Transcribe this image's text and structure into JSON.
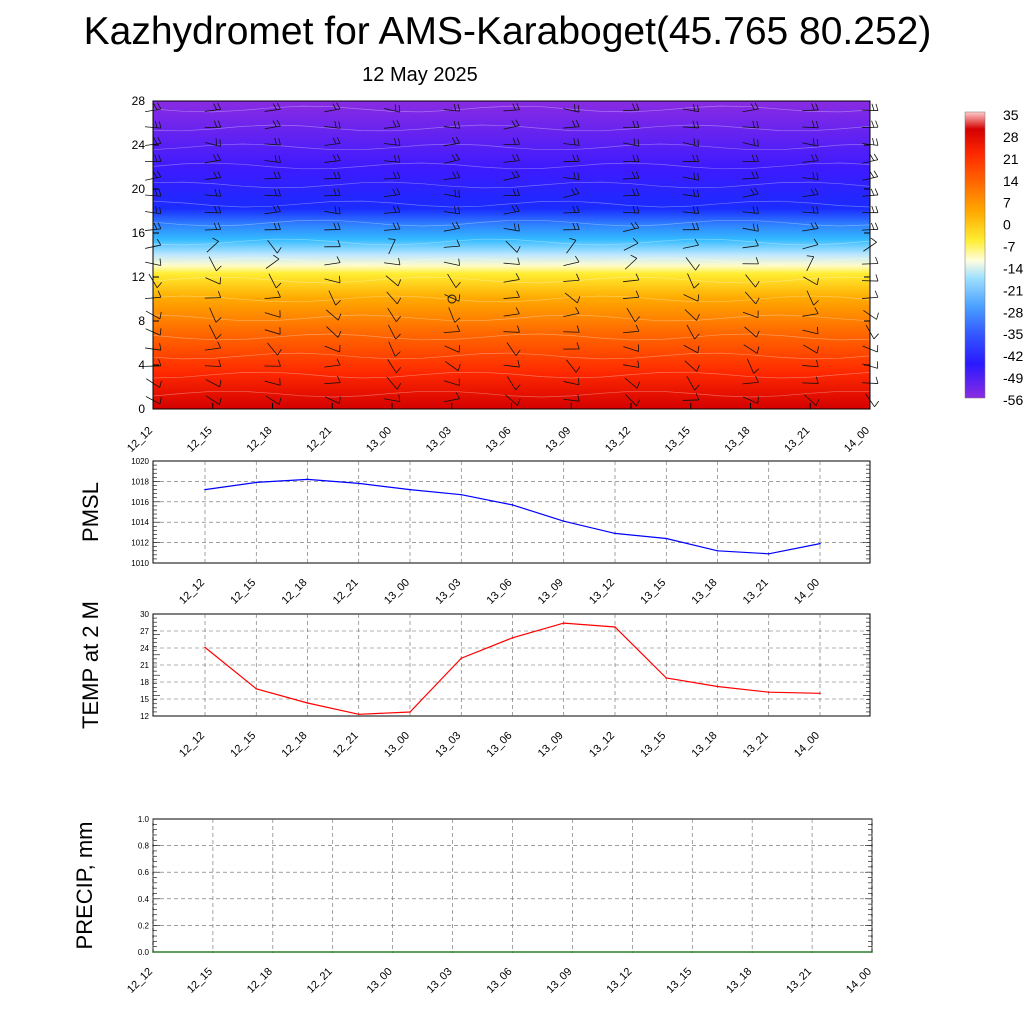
{
  "title": "Kazhydromet for AMS-Karaboget(45.765 80.252)",
  "subtitle": "12 May 2025",
  "time_labels": [
    "12_12",
    "12_15",
    "12_18",
    "12_21",
    "13_00",
    "13_03",
    "13_06",
    "13_09",
    "13_12",
    "13_15",
    "13_18",
    "13_21",
    "14_00"
  ],
  "colorbar": {
    "labels": [
      "35",
      "28",
      "21",
      "14",
      "7",
      "0",
      "-7",
      "-14",
      "-21",
      "-28",
      "-35",
      "-42",
      "-49",
      "-56"
    ]
  },
  "chart_data": [
    {
      "type": "heatmap",
      "name": "temperature-profile",
      "x": [
        "12_12",
        "12_15",
        "12_18",
        "12_21",
        "13_00",
        "13_03",
        "13_06",
        "13_09",
        "13_12",
        "13_15",
        "13_18",
        "13_21",
        "14_00"
      ],
      "y_ticks": [
        0,
        4,
        8,
        12,
        16,
        20,
        24,
        28
      ],
      "ylim": [
        0,
        28
      ],
      "color_range": [
        -56,
        35
      ],
      "profile_temperature_by_level": [
        {
          "level": 0,
          "value": 28
        },
        {
          "level": 4,
          "value": 21
        },
        {
          "level": 8,
          "value": 10
        },
        {
          "level": 12,
          "value": -2
        },
        {
          "level": 13,
          "value": -14
        },
        {
          "level": 16,
          "value": -30
        },
        {
          "level": 18,
          "value": -49
        },
        {
          "level": 22,
          "value": -52
        },
        {
          "level": 26,
          "value": -56
        },
        {
          "level": 28,
          "value": -58
        }
      ],
      "wind_barbs": true
    },
    {
      "type": "line",
      "name": "pmsl",
      "ylabel": "PMSL",
      "x": [
        "12_12",
        "12_15",
        "12_18",
        "12_21",
        "13_00",
        "13_03",
        "13_06",
        "13_09",
        "13_12",
        "13_15",
        "13_18",
        "13_21",
        "14_00"
      ],
      "values": [
        1017.2,
        1017.9,
        1018.2,
        1017.8,
        1017.2,
        1016.7,
        1015.7,
        1014.1,
        1012.9,
        1012.4,
        1011.2,
        1010.9,
        1011.9
      ],
      "y_ticks": [
        1010,
        1012,
        1014,
        1016,
        1018,
        1020
      ],
      "ylim": [
        1010,
        1020
      ],
      "color": "#0000ff",
      "grid": true
    },
    {
      "type": "line",
      "name": "temp-2m",
      "ylabel": "TEMP at 2 M",
      "x": [
        "12_12",
        "12_15",
        "12_18",
        "12_21",
        "13_00",
        "13_03",
        "13_06",
        "13_09",
        "13_12",
        "13_15",
        "13_18",
        "13_21",
        "14_00"
      ],
      "values": [
        24.1,
        16.8,
        14.3,
        12.3,
        12.7,
        22.2,
        25.8,
        28.4,
        27.7,
        18.7,
        17.2,
        16.2,
        16.0
      ],
      "y_ticks": [
        12,
        15,
        18,
        21,
        24,
        27,
        30
      ],
      "ylim": [
        12,
        30
      ],
      "color": "#ff0000",
      "grid": true
    },
    {
      "type": "line",
      "name": "precip",
      "ylabel": "PRECIP, mm",
      "x": [
        "12_12",
        "12_15",
        "12_18",
        "12_21",
        "13_00",
        "13_03",
        "13_06",
        "13_09",
        "13_12",
        "13_15",
        "13_18",
        "13_21",
        "14_00"
      ],
      "values": [
        0,
        0,
        0,
        0,
        0,
        0,
        0,
        0,
        0,
        0,
        0,
        0,
        0
      ],
      "y_ticks": [
        "0.0",
        "0.2",
        "0.4",
        "0.6",
        "0.8",
        "1.0"
      ],
      "ylim": [
        0,
        1.0
      ],
      "color": "#006400",
      "grid": true
    }
  ]
}
